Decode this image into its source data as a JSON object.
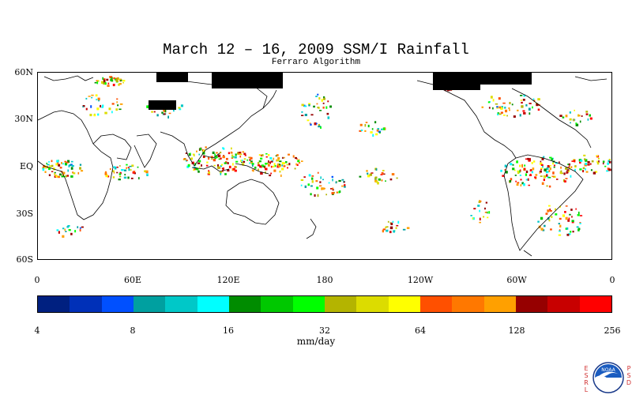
{
  "title": "March 12 – 16, 2009 SSM/I Rainfall",
  "subtitle": "Ferraro Algorithm",
  "map": {
    "lat_ticks": [
      "60N",
      "30N",
      "EQ",
      "30S",
      "60S"
    ],
    "lon_ticks": [
      "0",
      "60E",
      "120E",
      "180",
      "120W",
      "60W",
      "0"
    ],
    "lat_range": [
      -60,
      60
    ],
    "lon_range": [
      0,
      360
    ],
    "land_mask_color": "#000000"
  },
  "colorbar": {
    "colors": [
      "#002080",
      "#0030b8",
      "#0050ff",
      "#00a0a0",
      "#00c8c8",
      "#00ffff",
      "#008c00",
      "#00c800",
      "#00ff00",
      "#b4b400",
      "#dcdc00",
      "#ffff00",
      "#ff5000",
      "#ff7800",
      "#ffa000",
      "#960000",
      "#c80000",
      "#ff0000"
    ],
    "tick_labels": [
      "4",
      "8",
      "16",
      "32",
      "64",
      "128",
      "256"
    ],
    "units": "mm/day"
  },
  "logo": {
    "left_letters": [
      "E",
      "S",
      "R",
      "L"
    ],
    "right_letters": [
      "P",
      "S",
      "D"
    ],
    "icon": "noaa-logo-icon",
    "text": "NOAA"
  }
}
